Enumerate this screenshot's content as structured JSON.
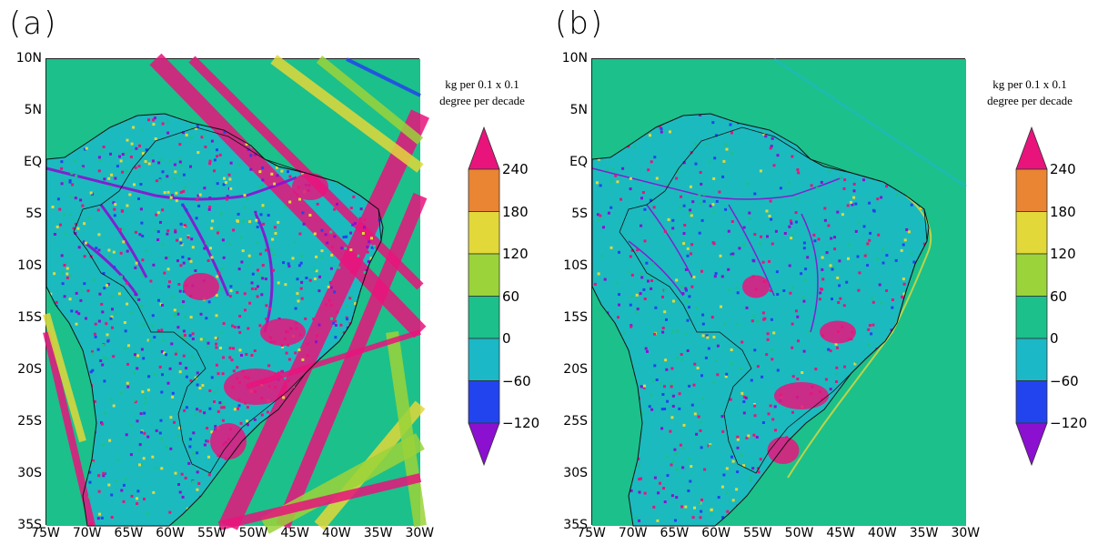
{
  "panels": [
    {
      "label": "(a)"
    },
    {
      "label": "(b)"
    }
  ],
  "y_ticks": [
    "10N",
    "5N",
    "EQ",
    "5S",
    "10S",
    "15S",
    "20S",
    "25S",
    "30S",
    "35S"
  ],
  "x_ticks": [
    "75W",
    "70W",
    "65W",
    "60W",
    "55W",
    "50W",
    "45W",
    "40W",
    "35W",
    "30W"
  ],
  "colorbar": {
    "title_line1": "kg per 0.1 x 0.1",
    "title_line2": "degree per decade",
    "ticks": [
      "240",
      "180",
      "120",
      "60",
      "0",
      "−60",
      "−120"
    ],
    "colors": {
      "above_240": "#e8147c",
      "180_240": "#ea8533",
      "120_180": "#e2d83a",
      "60_120": "#9bd33a",
      "0_60": "#1cc08a",
      "m60_0": "#1bb8c8",
      "m120_m60": "#2244ee",
      "below_m120": "#8c10d0"
    }
  }
}
